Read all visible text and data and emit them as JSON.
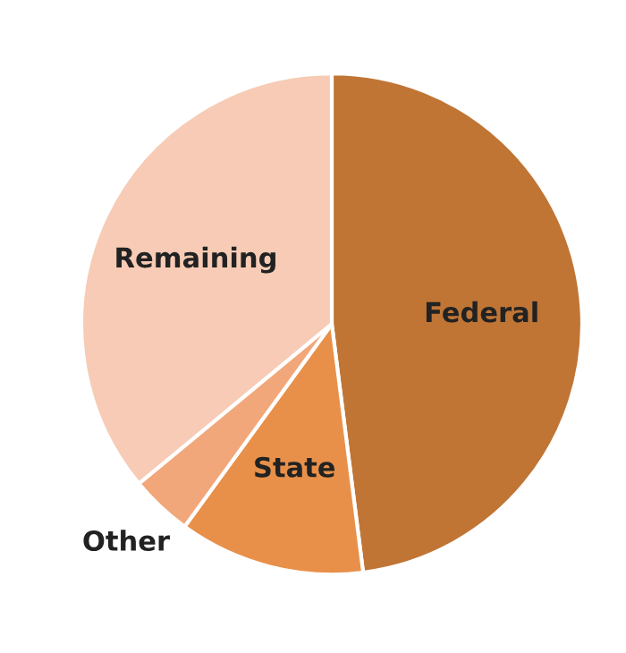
{
  "chart_data": {
    "type": "pie",
    "categories": [
      "Federal",
      "State",
      "Other",
      "Remaining"
    ],
    "values": [
      48,
      12,
      4,
      36
    ],
    "colors": [
      "#c07535",
      "#e8904a",
      "#f2a77a",
      "#f7cbb5"
    ]
  }
}
